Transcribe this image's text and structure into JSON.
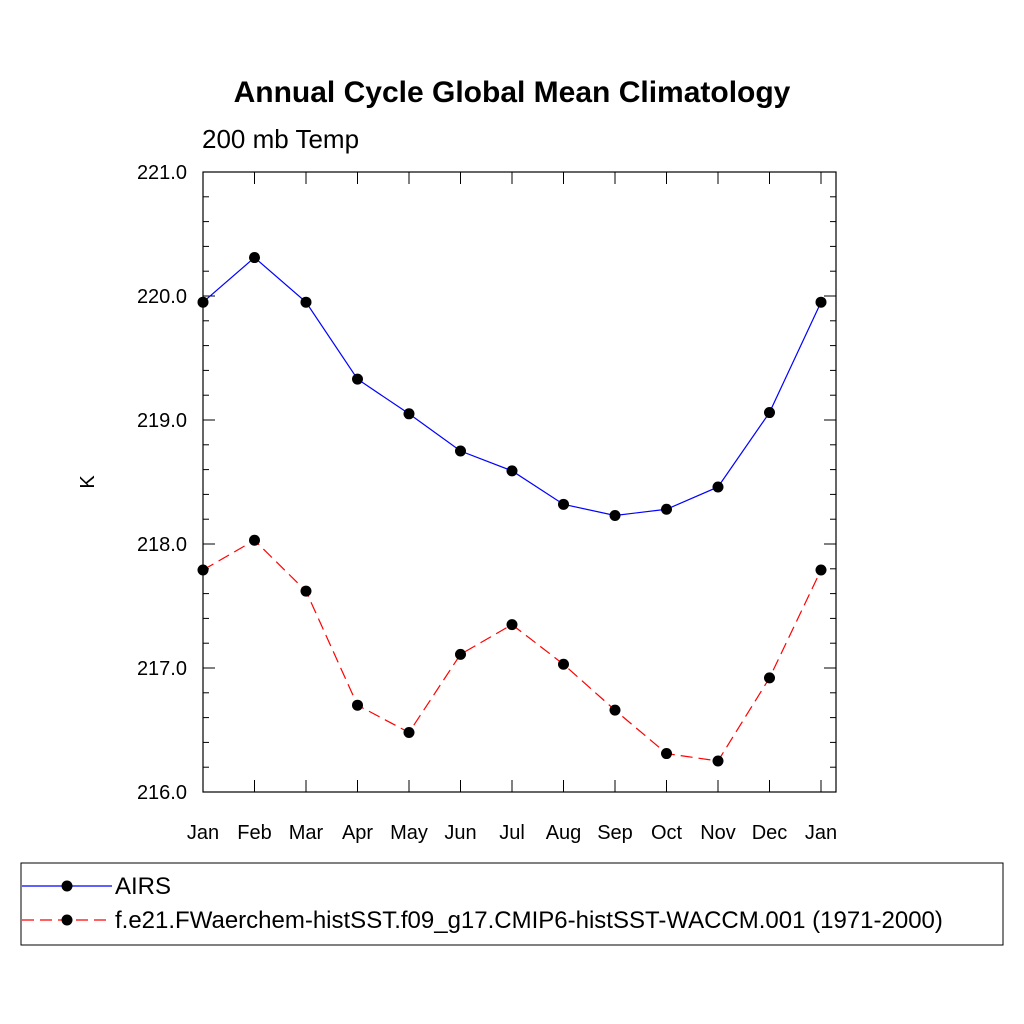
{
  "chart_data": {
    "type": "line",
    "title": "Annual Cycle Global Mean Climatology",
    "subtitle": "200 mb Temp",
    "xlabel": "",
    "ylabel": "K",
    "categories": [
      "Jan",
      "Feb",
      "Mar",
      "Apr",
      "May",
      "Jun",
      "Jul",
      "Aug",
      "Sep",
      "Oct",
      "Nov",
      "Dec",
      "Jan"
    ],
    "ylim": [
      216.0,
      221.0
    ],
    "yticks": [
      "216.0",
      "217.0",
      "218.0",
      "219.0",
      "220.0",
      "221.0"
    ],
    "grid": false,
    "legend_position": "bottom",
    "series": [
      {
        "name": "AIRS",
        "color": "#0000ff",
        "line_style": "solid",
        "marker": "circle",
        "values": [
          219.95,
          220.31,
          219.95,
          219.33,
          219.05,
          218.75,
          218.59,
          218.32,
          218.23,
          218.28,
          218.46,
          219.06,
          219.95
        ]
      },
      {
        "name": "f.e21.FWaerchem-histSST.f09_g17.CMIP6-histSST-WACCM.001 (1971-2000)",
        "color": "#ff0000",
        "line_style": "dashed",
        "marker": "circle",
        "values": [
          217.79,
          218.03,
          217.62,
          216.7,
          216.48,
          217.11,
          217.35,
          217.03,
          216.66,
          216.31,
          216.25,
          216.92,
          217.79
        ]
      }
    ]
  }
}
